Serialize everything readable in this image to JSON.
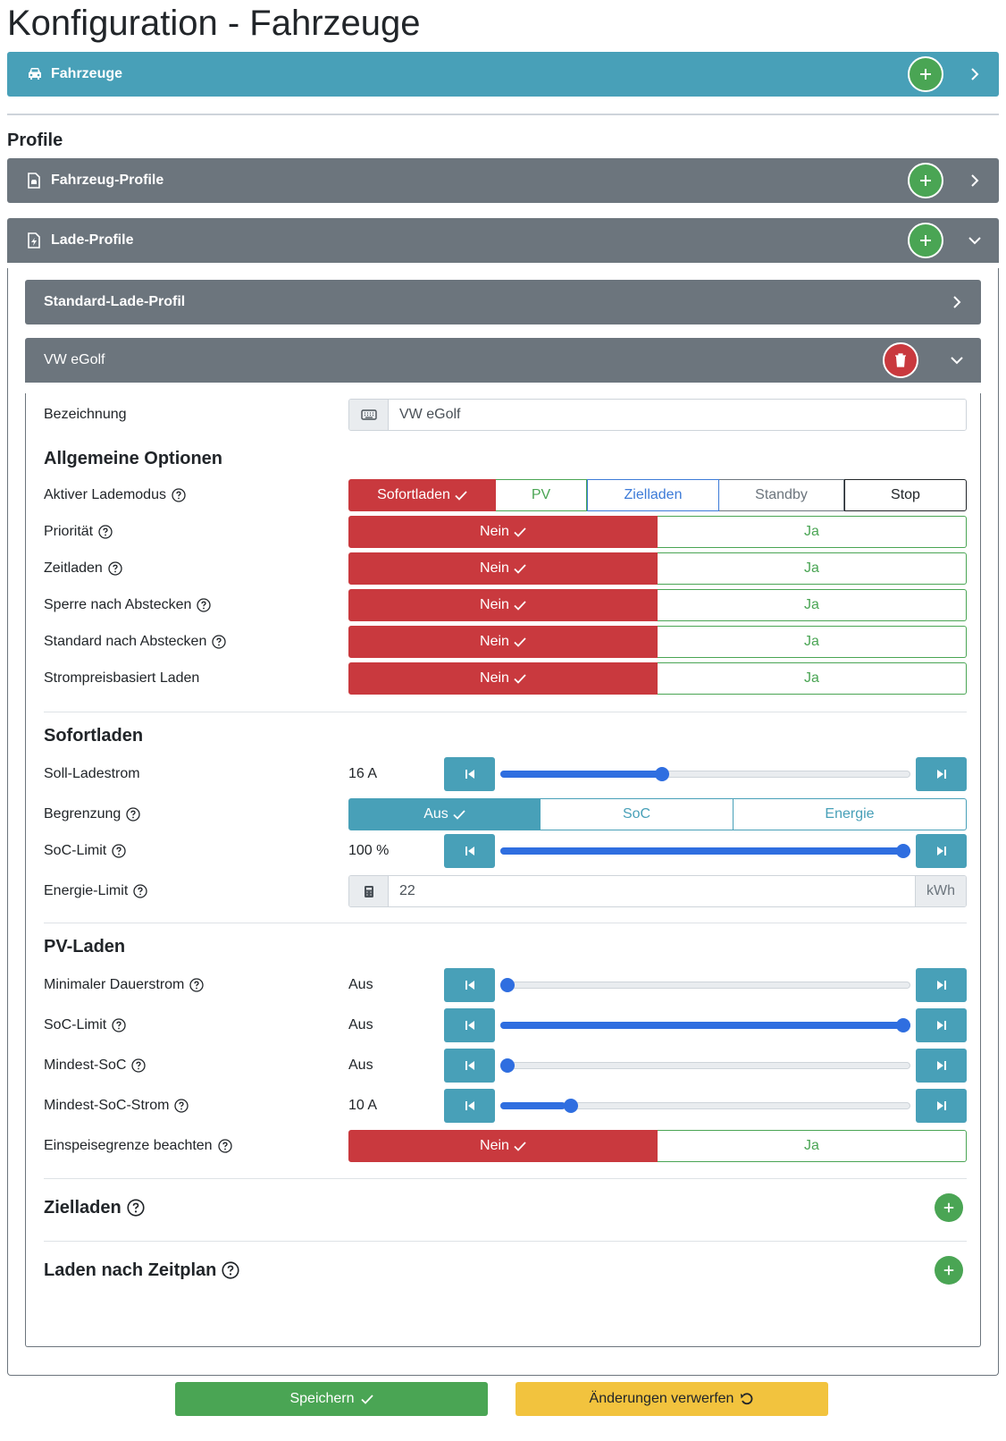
{
  "page": {
    "title": "Konfiguration - Fahrzeuge"
  },
  "cards": {
    "fahrzeuge": {
      "label": "Fahrzeuge",
      "icon": "car-icon"
    },
    "fahrzeug_profile": {
      "label": "Fahrzeug-Profile",
      "icon": "file-car-icon"
    },
    "lade_profile": {
      "label": "Lade-Profile",
      "icon": "file-charging-icon"
    }
  },
  "sections": {
    "profile": "Profile"
  },
  "lade_profile": {
    "standard": {
      "label": "Standard-Lade-Profil"
    },
    "egolf": {
      "label": "VW eGolf"
    }
  },
  "form": {
    "bezeichnung": {
      "label": "Bezeichnung",
      "value": "VW eGolf"
    },
    "allgemein": {
      "title": "Allgemeine Optionen",
      "lademodus": {
        "label": "Aktiver Lademodus",
        "options": [
          "Sofortladen",
          "PV",
          "Zielladen",
          "Standby",
          "Stop"
        ],
        "selected": "Sofortladen"
      },
      "toggles": [
        {
          "label": "Priorität",
          "help": true,
          "no": "Nein",
          "yes": "Ja",
          "selected": "no"
        },
        {
          "label": "Zeitladen",
          "help": true,
          "no": "Nein",
          "yes": "Ja",
          "selected": "no"
        },
        {
          "label": "Sperre nach Abstecken",
          "help": true,
          "no": "Nein",
          "yes": "Ja",
          "selected": "no"
        },
        {
          "label": "Standard nach Abstecken",
          "help": true,
          "no": "Nein",
          "yes": "Ja",
          "selected": "no"
        },
        {
          "label": "Strompreisbasiert Laden",
          "help": false,
          "no": "Nein",
          "yes": "Ja",
          "selected": "no"
        }
      ]
    },
    "sofortladen": {
      "title": "Sofortladen",
      "soll_ladestrom": {
        "label": "Soll-Ladestrom",
        "value": "16 A",
        "level": 0.39
      },
      "begrenzung": {
        "label": "Begrenzung",
        "options": [
          "Aus",
          "SoC",
          "Energie"
        ],
        "selected": "Aus"
      },
      "soc_limit": {
        "label": "SoC-Limit",
        "value": "100 %",
        "level": 1.0
      },
      "energie_limit": {
        "label": "Energie-Limit",
        "value": "22",
        "unit": "kWh"
      }
    },
    "pv_laden": {
      "title": "PV-Laden",
      "sliders": [
        {
          "label": "Minimaler Dauerstrom",
          "value": "Aus",
          "level": 0.0
        },
        {
          "label": "SoC-Limit",
          "value": "Aus",
          "level": 1.0
        },
        {
          "label": "Mindest-SoC",
          "value": "Aus",
          "level": 0.0
        },
        {
          "label": "Mindest-SoC-Strom",
          "value": "10 A",
          "level": 0.16
        }
      ],
      "einspeisegrenze": {
        "label": "Einspeisegrenze beachten",
        "no": "Nein",
        "yes": "Ja",
        "selected": "no"
      }
    },
    "zielladen": {
      "title": "Zielladen"
    },
    "zeitplan": {
      "title": "Laden nach Zeitplan"
    }
  },
  "actions": {
    "save": "Speichern",
    "discard": "Änderungen verwerfen"
  },
  "colors": {
    "teal": "#48a0b8",
    "grey": "#6c757d",
    "green": "#4aa554",
    "red": "#c9393e",
    "yellow": "#f2c33e",
    "blue": "#3d7bd8",
    "slider": "#2f6ee0"
  }
}
